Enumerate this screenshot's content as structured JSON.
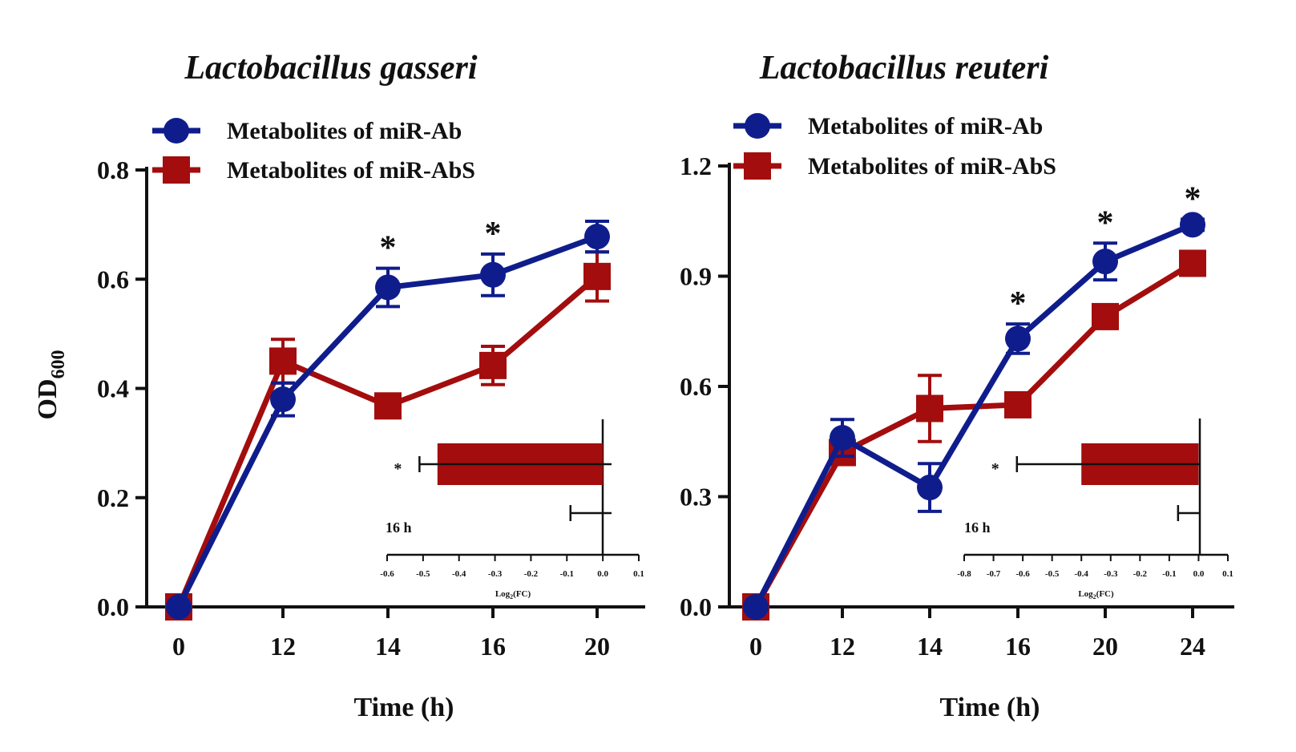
{
  "colors": {
    "ab": "#0f1d8c",
    "abs": "#a30d0d",
    "axis": "#111111"
  },
  "y_axis_title": "OD",
  "y_axis_title_sub": "600",
  "chart_data": [
    {
      "type": "line",
      "title": "Lactobacillus gasseri",
      "xlabel": "Time (h)",
      "ylabel": "OD600",
      "categories": [
        "0",
        "12",
        "14",
        "16",
        "20"
      ],
      "ylim": [
        0,
        0.8
      ],
      "yticks": [
        0.0,
        0.2,
        0.4,
        0.6,
        0.8
      ],
      "ytick_labels": [
        "0.0",
        "0.2",
        "0.4",
        "0.6",
        "0.8"
      ],
      "series": [
        {
          "name": "Metabolites of miR-Ab",
          "color": "#0f1d8c",
          "marker": "circle",
          "values": [
            0.0,
            0.38,
            0.585,
            0.608,
            0.678
          ],
          "errors": [
            0.0,
            0.03,
            0.035,
            0.038,
            0.028
          ]
        },
        {
          "name": "Metabolites of miR-AbS",
          "color": "#a30d0d",
          "marker": "square",
          "values": [
            0.0,
            0.45,
            0.368,
            0.442,
            0.605
          ],
          "errors": [
            0.0,
            0.04,
            0.012,
            0.035,
            0.045
          ]
        }
      ],
      "significance": [
        "",
        "",
        "*",
        "*",
        ""
      ],
      "inset": {
        "type": "bar",
        "label": "16 h",
        "xlabel": "Log",
        "xlabel_sub": "2",
        "xlabel_suffix": "(FC)",
        "xlim": [
          -0.6,
          0.1
        ],
        "xticks": [
          -0.6,
          -0.5,
          -0.4,
          -0.3,
          -0.2,
          -0.1,
          0.0,
          0.1
        ],
        "xtick_labels": [
          "-0.6",
          "-0.5",
          "-0.4",
          "-0.3",
          "-0.2",
          "-0.1",
          "0.0",
          "0.1"
        ],
        "bars": [
          {
            "value": -0.46,
            "error": 0.05,
            "star": "*"
          },
          {
            "value": 0.0,
            "error": 0.09,
            "star": ""
          }
        ]
      }
    },
    {
      "type": "line",
      "title": "Lactobacillus reuteri",
      "xlabel": "Time (h)",
      "ylabel": "",
      "categories": [
        "0",
        "12",
        "14",
        "16",
        "20",
        "24"
      ],
      "ylim": [
        0,
        1.2
      ],
      "yticks": [
        0.0,
        0.3,
        0.6,
        0.9,
        1.2
      ],
      "ytick_labels": [
        "0.0",
        "0.3",
        "0.6",
        "0.9",
        "1.2"
      ],
      "series": [
        {
          "name": "Metabolites of miR-Ab",
          "color": "#0f1d8c",
          "marker": "circle",
          "values": [
            0.0,
            0.46,
            0.325,
            0.73,
            0.94,
            1.04
          ],
          "errors": [
            0.0,
            0.05,
            0.065,
            0.04,
            0.05,
            0.015
          ]
        },
        {
          "name": "Metabolites of miR-AbS",
          "color": "#a30d0d",
          "marker": "square",
          "values": [
            0.0,
            0.42,
            0.54,
            0.55,
            0.79,
            0.935
          ],
          "errors": [
            0.0,
            0.03,
            0.09,
            0.025,
            0.025,
            0.015
          ]
        }
      ],
      "significance": [
        "",
        "",
        "",
        "*",
        "*",
        "*"
      ],
      "inset": {
        "type": "bar",
        "label": "16 h",
        "xlabel": "Log",
        "xlabel_sub": "2",
        "xlabel_suffix": "(FC)",
        "xlim": [
          -0.8,
          0.1
        ],
        "xticks": [
          -0.8,
          -0.7,
          -0.6,
          -0.5,
          -0.4,
          -0.3,
          -0.2,
          -0.1,
          0.0,
          0.1
        ],
        "xtick_labels": [
          "-0.8",
          "-0.7",
          "-0.6",
          "-0.5",
          "-0.4",
          "-0.3",
          "-0.2",
          "-0.1",
          "0.0",
          "0.1"
        ],
        "bars": [
          {
            "value": -0.4,
            "error": 0.22,
            "star": "*"
          },
          {
            "value": 0.0,
            "error": 0.07,
            "star": ""
          }
        ]
      }
    }
  ]
}
